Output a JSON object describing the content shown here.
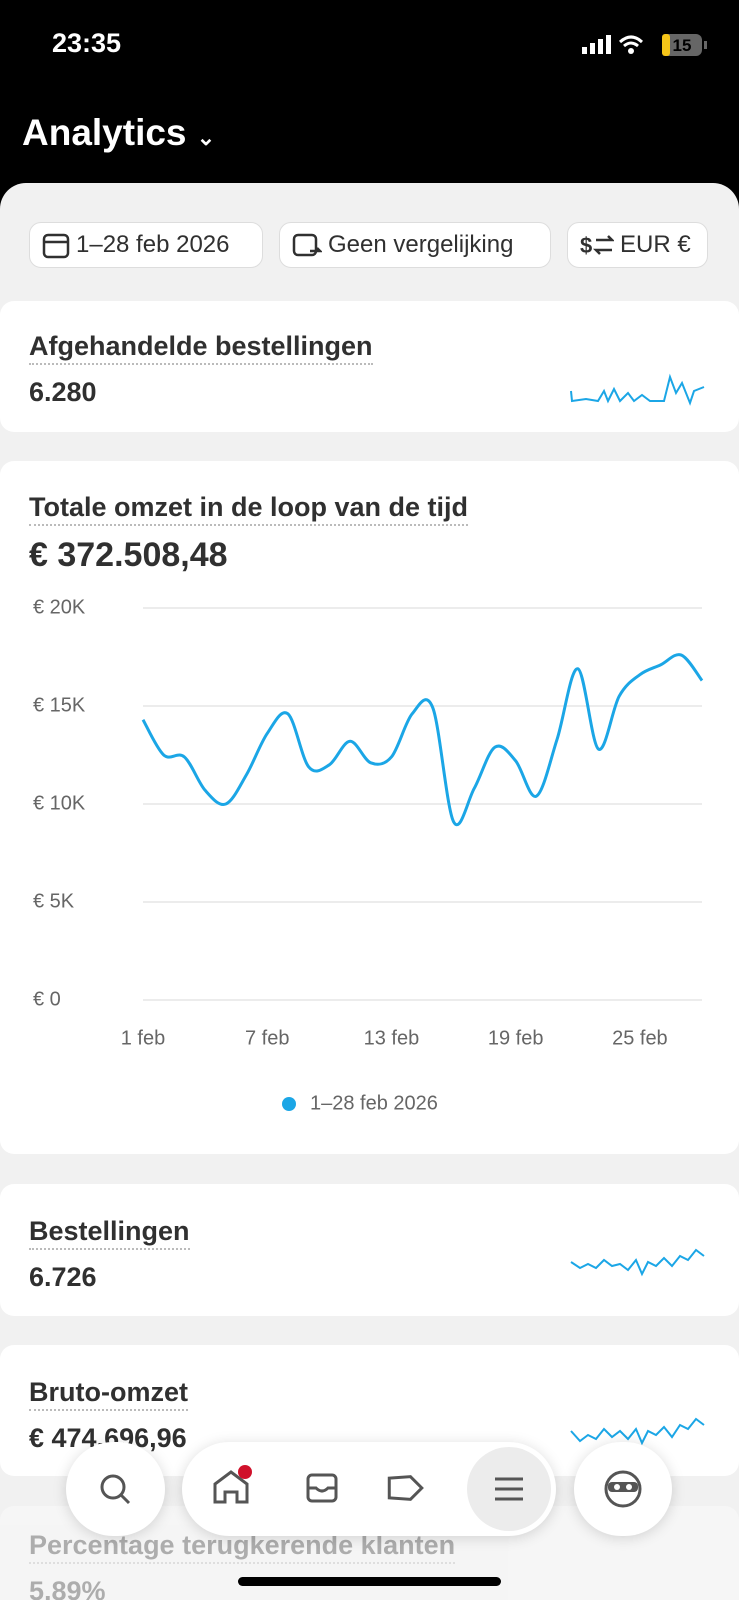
{
  "status_bar": {
    "time": "23:35",
    "battery": "15"
  },
  "header": {
    "title": "Analytics"
  },
  "filters": [
    "1–28 feb 2026",
    "Geen vergelijking",
    "EUR €"
  ],
  "metrics": [
    {
      "label": "Afgehandelde bestellingen",
      "value": "6.280"
    },
    {
      "label": "Bestellingen",
      "value": "6.726"
    },
    {
      "label": "Bruto-omzet",
      "value": "€ 474.696,96"
    },
    {
      "label": "Percentage terugkerende klanten",
      "value": "5,89%"
    }
  ],
  "chart_data": {
    "type": "line",
    "title": "Totale omzet in de loop van de tijd",
    "subtitle": "€ 372.508,48",
    "categories": [
      "1 feb",
      null,
      null,
      null,
      null,
      null,
      "7 feb",
      null,
      null,
      null,
      null,
      null,
      "13 feb",
      null,
      null,
      null,
      null,
      null,
      "19 feb",
      null,
      null,
      null,
      null,
      null,
      "25 feb",
      null,
      null,
      null
    ],
    "series": [
      {
        "name": "1–28 feb 2026",
        "color": "#1ba6e6",
        "values": [
          14300,
          12500,
          12400,
          10700,
          10000,
          11500,
          13600,
          14600,
          11900,
          12000,
          13200,
          12100,
          12400,
          14600,
          14900,
          9100,
          10800,
          12900,
          12200,
          10400,
          13300,
          16900,
          12800,
          15500,
          16600,
          17100,
          17600,
          16300
        ]
      }
    ],
    "ylim": [
      0,
      20000
    ],
    "yticks": [
      {
        "value": 0,
        "label": "€ 0"
      },
      {
        "value": 5000,
        "label": "€ 5K"
      },
      {
        "value": 10000,
        "label": "€ 10K"
      },
      {
        "value": 15000,
        "label": "€ 15K"
      },
      {
        "value": 20000,
        "label": "€ 20K"
      }
    ],
    "grid": true
  }
}
